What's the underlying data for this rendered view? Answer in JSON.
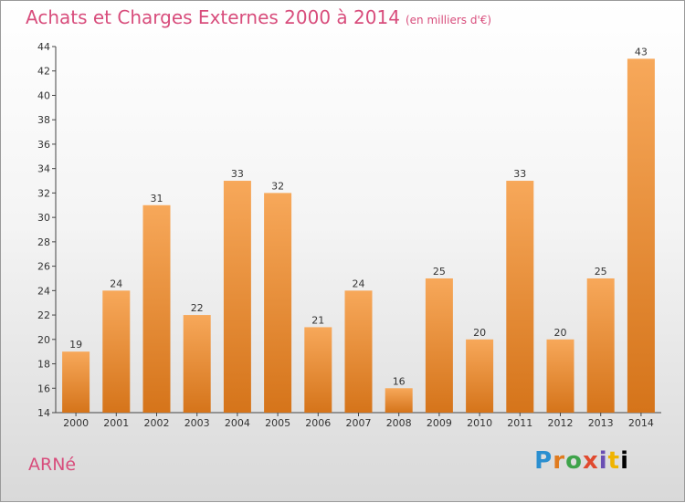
{
  "header": {
    "title": "Achats et Charges Externes 2000 à 2014",
    "unit": "(en milliers d'€)"
  },
  "footer": {
    "commune": "ARNé",
    "logo": "Proxiti"
  },
  "colors": {
    "title": "#d84d7c",
    "bar_top": "#f7a85a",
    "bar_bottom": "#d5741a"
  },
  "chart_data": {
    "type": "bar",
    "title": "Achats et Charges Externes 2000 à 2014",
    "subtitle": "(en milliers d'€)",
    "xlabel": "",
    "ylabel": "",
    "categories": [
      "2000",
      "2001",
      "2002",
      "2003",
      "2004",
      "2005",
      "2006",
      "2007",
      "2008",
      "2009",
      "2010",
      "2011",
      "2012",
      "2013",
      "2014"
    ],
    "values": [
      19,
      24,
      31,
      22,
      33,
      32,
      21,
      24,
      16,
      25,
      20,
      33,
      20,
      25,
      43
    ],
    "ylim": [
      14,
      44
    ],
    "yticks": [
      14,
      16,
      18,
      20,
      22,
      24,
      26,
      28,
      30,
      32,
      34,
      36,
      38,
      40,
      42,
      44
    ],
    "grid": false,
    "legend": "none"
  }
}
